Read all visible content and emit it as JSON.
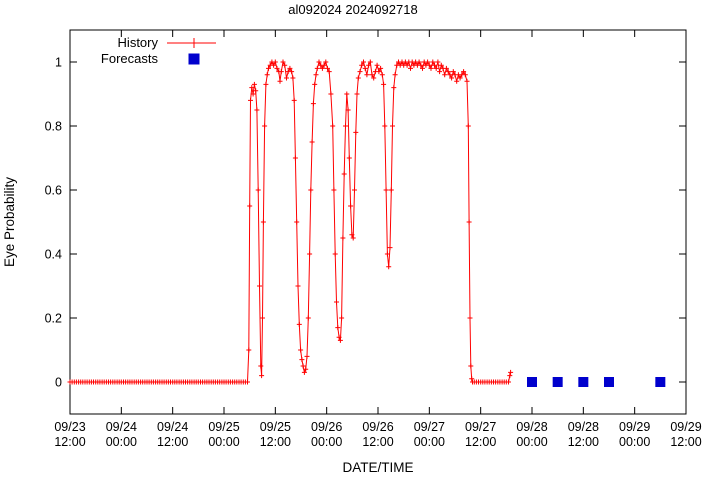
{
  "chart_data": {
    "type": "line",
    "title": "al092024 2024092718",
    "xlabel": "DATE/TIME",
    "ylabel": "Eye Probability",
    "grid": false,
    "legend_position": "top-left-inside",
    "x_axis": {
      "range_hours": [
        0,
        144
      ],
      "tick_interval_hours": 12,
      "tick_labels": [
        [
          "09/23",
          "12:00"
        ],
        [
          "09/24",
          "00:00"
        ],
        [
          "09/24",
          "12:00"
        ],
        [
          "09/25",
          "00:00"
        ],
        [
          "09/25",
          "12:00"
        ],
        [
          "09/26",
          "00:00"
        ],
        [
          "09/26",
          "12:00"
        ],
        [
          "09/27",
          "00:00"
        ],
        [
          "09/27",
          "12:00"
        ],
        [
          "09/28",
          "00:00"
        ],
        [
          "09/28",
          "12:00"
        ],
        [
          "09/29",
          "00:00"
        ],
        [
          "09/29",
          "12:00"
        ]
      ]
    },
    "y_axis": {
      "range": [
        -0.1,
        1.1
      ],
      "ticks": [
        0,
        0.2,
        0.4,
        0.6,
        0.8,
        1
      ],
      "tick_labels": [
        "0",
        "0.2",
        "0.4",
        "0.6",
        "0.8",
        "1"
      ]
    },
    "series": [
      {
        "name": "History",
        "type": "line",
        "marker": "plus",
        "color": "#ff0000",
        "x_unit": "hours_after_09/23_12:00",
        "points": [
          [
            0,
            0
          ],
          [
            0.5,
            0
          ],
          [
            1,
            0
          ],
          [
            1.5,
            0
          ],
          [
            2,
            0
          ],
          [
            2.5,
            0
          ],
          [
            3,
            0
          ],
          [
            3.5,
            0
          ],
          [
            4,
            0
          ],
          [
            4.5,
            0
          ],
          [
            5,
            0
          ],
          [
            5.5,
            0
          ],
          [
            6,
            0
          ],
          [
            6.5,
            0
          ],
          [
            7,
            0
          ],
          [
            7.5,
            0
          ],
          [
            8,
            0
          ],
          [
            8.5,
            0
          ],
          [
            9,
            0
          ],
          [
            9.5,
            0
          ],
          [
            10,
            0
          ],
          [
            10.5,
            0
          ],
          [
            11,
            0
          ],
          [
            11.5,
            0
          ],
          [
            12,
            0
          ],
          [
            12.5,
            0
          ],
          [
            13,
            0
          ],
          [
            13.5,
            0
          ],
          [
            14,
            0
          ],
          [
            14.5,
            0
          ],
          [
            15,
            0
          ],
          [
            15.5,
            0
          ],
          [
            16,
            0
          ],
          [
            16.5,
            0
          ],
          [
            17,
            0
          ],
          [
            17.5,
            0
          ],
          [
            18,
            0
          ],
          [
            18.5,
            0
          ],
          [
            19,
            0
          ],
          [
            19.5,
            0
          ],
          [
            20,
            0
          ],
          [
            20.5,
            0
          ],
          [
            21,
            0
          ],
          [
            21.5,
            0
          ],
          [
            22,
            0
          ],
          [
            22.5,
            0
          ],
          [
            23,
            0
          ],
          [
            23.5,
            0
          ],
          [
            24,
            0
          ],
          [
            24.5,
            0
          ],
          [
            25,
            0
          ],
          [
            25.5,
            0
          ],
          [
            26,
            0
          ],
          [
            26.5,
            0
          ],
          [
            27,
            0
          ],
          [
            27.5,
            0
          ],
          [
            28,
            0
          ],
          [
            28.5,
            0
          ],
          [
            29,
            0
          ],
          [
            29.5,
            0
          ],
          [
            30,
            0
          ],
          [
            30.5,
            0
          ],
          [
            31,
            0
          ],
          [
            31.5,
            0
          ],
          [
            32,
            0
          ],
          [
            32.5,
            0
          ],
          [
            33,
            0
          ],
          [
            33.5,
            0
          ],
          [
            34,
            0
          ],
          [
            34.5,
            0
          ],
          [
            35,
            0
          ],
          [
            35.5,
            0
          ],
          [
            36,
            0
          ],
          [
            36.5,
            0
          ],
          [
            37,
            0
          ],
          [
            37.5,
            0
          ],
          [
            38,
            0
          ],
          [
            38.5,
            0
          ],
          [
            39,
            0
          ],
          [
            39.5,
            0
          ],
          [
            40,
            0
          ],
          [
            40.5,
            0
          ],
          [
            41,
            0
          ],
          [
            41.5,
            0
          ],
          [
            41.8,
            0.1
          ],
          [
            42,
            0.55
          ],
          [
            42.2,
            0.88
          ],
          [
            42.5,
            0.92
          ],
          [
            42.8,
            0.9
          ],
          [
            43.1,
            0.93
          ],
          [
            43.4,
            0.91
          ],
          [
            43.7,
            0.85
          ],
          [
            44,
            0.6
          ],
          [
            44.3,
            0.3
          ],
          [
            44.6,
            0.05
          ],
          [
            44.8,
            0.02
          ],
          [
            45,
            0.2
          ],
          [
            45.2,
            0.5
          ],
          [
            45.5,
            0.8
          ],
          [
            45.8,
            0.93
          ],
          [
            46.1,
            0.96
          ],
          [
            46.4,
            0.98
          ],
          [
            46.8,
            0.99
          ],
          [
            47.2,
            1
          ],
          [
            47.6,
            0.99
          ],
          [
            48,
            1
          ],
          [
            48.4,
            0.98
          ],
          [
            48.8,
            0.97
          ],
          [
            49.1,
            0.94
          ],
          [
            49.4,
            0.97
          ],
          [
            49.8,
            1
          ],
          [
            50.2,
            0.99
          ],
          [
            50.6,
            0.95
          ],
          [
            51,
            0.97
          ],
          [
            51.4,
            0.98
          ],
          [
            51.8,
            0.97
          ],
          [
            52.1,
            0.95
          ],
          [
            52.4,
            0.88
          ],
          [
            52.7,
            0.7
          ],
          [
            53,
            0.5
          ],
          [
            53.3,
            0.3
          ],
          [
            53.6,
            0.18
          ],
          [
            53.9,
            0.1
          ],
          [
            54.2,
            0.07
          ],
          [
            54.5,
            0.05
          ],
          [
            54.8,
            0.03
          ],
          [
            55.1,
            0.04
          ],
          [
            55.4,
            0.08
          ],
          [
            55.7,
            0.2
          ],
          [
            56,
            0.4
          ],
          [
            56.3,
            0.6
          ],
          [
            56.6,
            0.75
          ],
          [
            56.9,
            0.87
          ],
          [
            57.2,
            0.93
          ],
          [
            57.5,
            0.96
          ],
          [
            57.8,
            0.98
          ],
          [
            58.2,
            1
          ],
          [
            58.6,
            0.99
          ],
          [
            59,
            0.98
          ],
          [
            59.4,
            0.99
          ],
          [
            59.8,
            1
          ],
          [
            60.2,
            0.98
          ],
          [
            60.6,
            0.97
          ],
          [
            61,
            0.9
          ],
          [
            61.4,
            0.8
          ],
          [
            61.7,
            0.6
          ],
          [
            62,
            0.4
          ],
          [
            62.3,
            0.25
          ],
          [
            62.6,
            0.17
          ],
          [
            62.9,
            0.14
          ],
          [
            63.2,
            0.13
          ],
          [
            63.5,
            0.2
          ],
          [
            63.8,
            0.45
          ],
          [
            64.1,
            0.65
          ],
          [
            64.4,
            0.8
          ],
          [
            64.7,
            0.9
          ],
          [
            65,
            0.85
          ],
          [
            65.3,
            0.7
          ],
          [
            65.6,
            0.55
          ],
          [
            65.9,
            0.46
          ],
          [
            66.2,
            0.45
          ],
          [
            66.5,
            0.6
          ],
          [
            66.8,
            0.78
          ],
          [
            67.1,
            0.9
          ],
          [
            67.4,
            0.95
          ],
          [
            67.8,
            0.97
          ],
          [
            68.2,
            0.99
          ],
          [
            68.6,
            1
          ],
          [
            69,
            0.98
          ],
          [
            69.4,
            0.96
          ],
          [
            69.8,
            0.99
          ],
          [
            70.2,
            1
          ],
          [
            70.6,
            0.96
          ],
          [
            71,
            0.95
          ],
          [
            71.4,
            0.97
          ],
          [
            71.8,
            0.99
          ],
          [
            72.2,
            0.97
          ],
          [
            72.6,
            0.98
          ],
          [
            73,
            0.96
          ],
          [
            73.3,
            0.93
          ],
          [
            73.6,
            0.8
          ],
          [
            73.9,
            0.6
          ],
          [
            74.2,
            0.4
          ],
          [
            74.5,
            0.36
          ],
          [
            74.8,
            0.42
          ],
          [
            75.1,
            0.6
          ],
          [
            75.4,
            0.8
          ],
          [
            75.7,
            0.92
          ],
          [
            76,
            0.96
          ],
          [
            76.4,
            0.99
          ],
          [
            76.8,
            1
          ],
          [
            77.2,
            0.99
          ],
          [
            77.6,
            1
          ],
          [
            78,
            0.99
          ],
          [
            78.4,
            1
          ],
          [
            78.8,
            0.99
          ],
          [
            79.2,
            1
          ],
          [
            79.6,
            0.98
          ],
          [
            80,
            1
          ],
          [
            80.4,
            0.99
          ],
          [
            80.8,
            1
          ],
          [
            81.2,
            0.99
          ],
          [
            81.6,
            1
          ],
          [
            82,
            0.99
          ],
          [
            82.4,
            0.98
          ],
          [
            82.8,
            1
          ],
          [
            83.2,
            0.99
          ],
          [
            83.6,
            1
          ],
          [
            84,
            0.99
          ],
          [
            84.4,
            0.98
          ],
          [
            84.8,
            1
          ],
          [
            85.2,
            0.99
          ],
          [
            85.6,
            0.98
          ],
          [
            86,
            1
          ],
          [
            86.4,
            0.97
          ],
          [
            86.8,
            0.99
          ],
          [
            87.2,
            0.98
          ],
          [
            87.6,
            0.96
          ],
          [
            88,
            0.98
          ],
          [
            88.4,
            0.97
          ],
          [
            88.8,
            0.96
          ],
          [
            89.2,
            0.95
          ],
          [
            89.6,
            0.97
          ],
          [
            90,
            0.96
          ],
          [
            90.4,
            0.94
          ],
          [
            90.8,
            0.96
          ],
          [
            91.2,
            0.95
          ],
          [
            91.6,
            0.96
          ],
          [
            92,
            0.97
          ],
          [
            92.4,
            0.96
          ],
          [
            92.8,
            0.94
          ],
          [
            93.1,
            0.8
          ],
          [
            93.3,
            0.5
          ],
          [
            93.5,
            0.2
          ],
          [
            93.7,
            0.05
          ],
          [
            93.9,
            0.01
          ],
          [
            94.1,
            0
          ],
          [
            94.5,
            0
          ],
          [
            95,
            0
          ],
          [
            95.5,
            0
          ],
          [
            96,
            0
          ],
          [
            96.5,
            0
          ],
          [
            97,
            0
          ],
          [
            97.5,
            0
          ],
          [
            98,
            0
          ],
          [
            98.5,
            0
          ],
          [
            99,
            0
          ],
          [
            99.5,
            0
          ],
          [
            100,
            0
          ],
          [
            100.5,
            0
          ],
          [
            101,
            0
          ],
          [
            101.5,
            0
          ],
          [
            102,
            0
          ],
          [
            102.5,
            0
          ],
          [
            102.8,
            0.02
          ],
          [
            103,
            0.03
          ]
        ]
      },
      {
        "name": "Forecasts",
        "type": "points",
        "marker": "filled-square",
        "color": "#0000cd",
        "x_unit": "hours_after_09/23_12:00",
        "points": [
          [
            108,
            0
          ],
          [
            114,
            0
          ],
          [
            120,
            0
          ],
          [
            126,
            0
          ],
          [
            138,
            0
          ]
        ]
      }
    ]
  }
}
